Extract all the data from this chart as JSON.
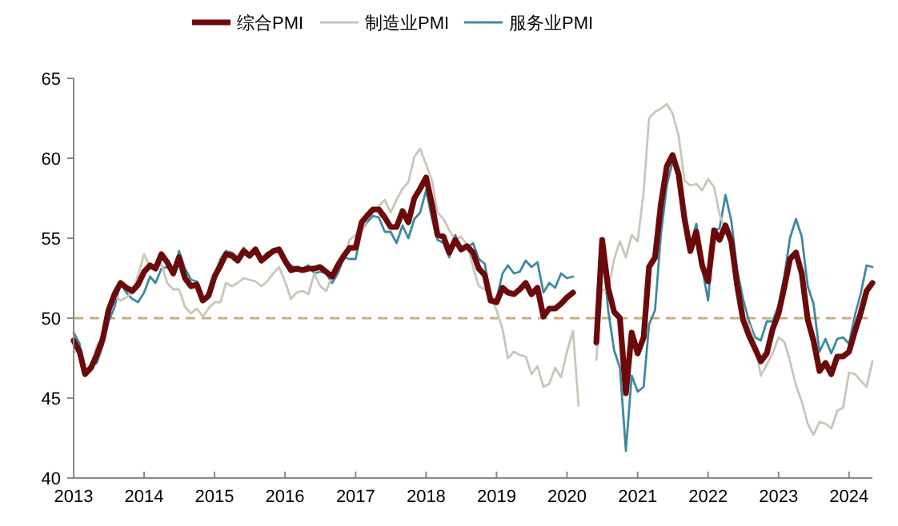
{
  "chart_data": {
    "type": "line",
    "x": [
      "2013-01",
      "2013-02",
      "2013-03",
      "2013-04",
      "2013-05",
      "2013-06",
      "2013-07",
      "2013-08",
      "2013-09",
      "2013-10",
      "2013-11",
      "2013-12",
      "2014-01",
      "2014-02",
      "2014-03",
      "2014-04",
      "2014-05",
      "2014-06",
      "2014-07",
      "2014-08",
      "2014-09",
      "2014-10",
      "2014-11",
      "2014-12",
      "2015-01",
      "2015-02",
      "2015-03",
      "2015-04",
      "2015-05",
      "2015-06",
      "2015-07",
      "2015-08",
      "2015-09",
      "2015-10",
      "2015-11",
      "2015-12",
      "2016-01",
      "2016-02",
      "2016-03",
      "2016-04",
      "2016-05",
      "2016-06",
      "2016-07",
      "2016-08",
      "2016-09",
      "2016-10",
      "2016-11",
      "2016-12",
      "2017-01",
      "2017-02",
      "2017-03",
      "2017-04",
      "2017-05",
      "2017-06",
      "2017-07",
      "2017-08",
      "2017-09",
      "2017-10",
      "2017-11",
      "2017-12",
      "2018-01",
      "2018-02",
      "2018-03",
      "2018-04",
      "2018-05",
      "2018-06",
      "2018-07",
      "2018-08",
      "2018-09",
      "2018-10",
      "2018-11",
      "2018-12",
      "2019-01",
      "2019-02",
      "2019-03",
      "2019-04",
      "2019-05",
      "2019-06",
      "2019-07",
      "2019-08",
      "2019-09",
      "2019-10",
      "2019-11",
      "2019-12",
      "2020-01",
      "2020-02",
      "2020-03",
      "2020-04",
      "2020-05",
      "2020-06",
      "2020-07",
      "2020-08",
      "2020-09",
      "2020-10",
      "2020-11",
      "2020-12",
      "2021-01",
      "2021-02",
      "2021-03",
      "2021-04",
      "2021-05",
      "2021-06",
      "2021-07",
      "2021-08",
      "2021-09",
      "2021-10",
      "2021-11",
      "2021-12",
      "2022-01",
      "2022-02",
      "2022-03",
      "2022-04",
      "2022-05",
      "2022-06",
      "2022-07",
      "2022-08",
      "2022-09",
      "2022-10",
      "2022-11",
      "2022-12",
      "2023-01",
      "2023-02",
      "2023-03",
      "2023-04",
      "2023-05",
      "2023-06",
      "2023-07",
      "2023-08",
      "2023-09",
      "2023-10",
      "2023-11",
      "2023-12",
      "2024-01",
      "2024-02",
      "2024-03",
      "2024-04",
      "2024-05"
    ],
    "series": [
      {
        "name": "综合PMI",
        "color": "#6b0a0a",
        "values": [
          48.6,
          47.9,
          46.5,
          46.9,
          47.7,
          48.7,
          50.5,
          51.5,
          52.2,
          51.9,
          51.7,
          52.1,
          52.9,
          53.3,
          53.1,
          54.0,
          53.5,
          52.8,
          53.8,
          52.5,
          52.0,
          52.1,
          51.1,
          51.4,
          52.6,
          53.3,
          54.0,
          53.9,
          53.6,
          54.2,
          53.9,
          54.3,
          53.6,
          53.9,
          54.2,
          54.3,
          53.6,
          53.0,
          53.1,
          53.0,
          53.1,
          53.1,
          53.2,
          52.9,
          52.6,
          53.3,
          53.9,
          54.4,
          54.4,
          56.0,
          56.4,
          56.8,
          56.8,
          56.3,
          55.7,
          55.7,
          56.7,
          56.0,
          57.5,
          58.1,
          58.8,
          57.1,
          55.2,
          55.1,
          54.1,
          54.9,
          54.3,
          54.5,
          54.1,
          53.1,
          52.7,
          51.1,
          51.0,
          51.9,
          51.6,
          51.5,
          51.8,
          52.2,
          51.5,
          51.9,
          50.1,
          50.6,
          50.6,
          50.9,
          51.3,
          51.6,
          null,
          null,
          null,
          48.5,
          54.9,
          51.9,
          50.4,
          50.0,
          45.3,
          49.1,
          47.8,
          48.8,
          53.2,
          53.8,
          57.1,
          59.5,
          60.2,
          59.0,
          56.2,
          54.2,
          55.4,
          53.3,
          52.3,
          55.5,
          54.9,
          55.8,
          54.8,
          52.0,
          49.9,
          48.9,
          48.1,
          47.3,
          47.8,
          49.3,
          50.3,
          52.0,
          53.7,
          54.1,
          52.8,
          49.9,
          48.6,
          46.7,
          47.2,
          46.5,
          47.6,
          47.6,
          47.9,
          49.2,
          50.3,
          51.7,
          52.2
        ]
      },
      {
        "name": "制造业PMI",
        "color": "#c9c6ba",
        "values": [
          47.9,
          47.9,
          46.8,
          46.7,
          48.3,
          48.8,
          50.3,
          51.4,
          51.1,
          51.3,
          51.6,
          52.7,
          54.0,
          53.2,
          53.0,
          53.4,
          52.2,
          51.8,
          51.8,
          50.7,
          50.3,
          50.6,
          50.1,
          50.6,
          51.0,
          51.0,
          52.2,
          52.0,
          52.2,
          52.5,
          52.4,
          52.3,
          52.0,
          52.3,
          52.8,
          53.2,
          52.3,
          51.2,
          51.6,
          51.7,
          51.5,
          52.8,
          52.0,
          51.7,
          52.6,
          53.5,
          53.7,
          54.9,
          55.2,
          55.4,
          56.2,
          56.7,
          57.0,
          57.4,
          56.6,
          57.4,
          58.1,
          58.5,
          60.1,
          60.6,
          59.6,
          58.6,
          56.6,
          56.2,
          55.5,
          54.9,
          55.1,
          54.6,
          53.2,
          52.0,
          51.8,
          51.4,
          50.5,
          49.3,
          47.5,
          47.9,
          47.7,
          47.6,
          46.5,
          47.0,
          45.7,
          45.9,
          46.9,
          46.3,
          47.9,
          49.2,
          44.5,
          null,
          null,
          47.4,
          51.8,
          51.7,
          53.7,
          54.8,
          53.8,
          55.2,
          54.8,
          57.9,
          62.5,
          62.9,
          63.1,
          63.4,
          62.8,
          61.4,
          58.6,
          58.3,
          58.4,
          58.0,
          58.7,
          58.2,
          56.5,
          55.5,
          54.6,
          52.1,
          49.8,
          49.6,
          48.4,
          46.4,
          47.1,
          47.8,
          48.8,
          48.5,
          47.3,
          45.8,
          44.8,
          43.4,
          42.7,
          43.5,
          43.4,
          43.1,
          44.2,
          44.4,
          46.6,
          46.5,
          46.1,
          45.7,
          47.3
        ]
      },
      {
        "name": "服务业PMI",
        "color": "#3d8aa0",
        "values": [
          49.1,
          48.4,
          46.4,
          47.0,
          47.2,
          48.3,
          49.8,
          50.7,
          52.2,
          51.6,
          51.2,
          51.0,
          51.6,
          52.6,
          52.2,
          53.1,
          53.2,
          52.8,
          54.2,
          53.1,
          52.4,
          52.3,
          51.1,
          51.6,
          52.7,
          53.7,
          54.2,
          54.1,
          53.8,
          54.4,
          54.0,
          54.4,
          53.7,
          54.1,
          54.2,
          54.2,
          53.6,
          53.3,
          53.1,
          53.1,
          53.3,
          52.8,
          52.9,
          52.8,
          52.2,
          52.8,
          53.8,
          53.7,
          53.7,
          55.5,
          56.0,
          56.4,
          56.3,
          55.4,
          55.4,
          54.7,
          55.8,
          55.0,
          56.2,
          56.6,
          58.0,
          56.2,
          54.9,
          54.7,
          53.8,
          55.2,
          54.2,
          54.4,
          54.7,
          53.7,
          53.4,
          51.2,
          51.2,
          52.8,
          53.3,
          52.8,
          52.9,
          53.6,
          53.2,
          53.5,
          51.6,
          52.2,
          51.9,
          52.8,
          52.5,
          52.6,
          null,
          null,
          null,
          48.3,
          54.7,
          50.5,
          48.0,
          46.9,
          41.7,
          46.4,
          45.4,
          45.7,
          49.6,
          50.5,
          55.2,
          58.3,
          59.8,
          59.0,
          56.4,
          54.6,
          55.9,
          53.1,
          51.1,
          55.5,
          55.6,
          57.7,
          56.1,
          53.0,
          51.2,
          49.8,
          48.8,
          48.6,
          49.8,
          49.8,
          50.8,
          52.7,
          55.0,
          56.2,
          55.1,
          52.0,
          50.9,
          47.9,
          48.7,
          47.8,
          48.7,
          48.8,
          48.4,
          50.2,
          51.5,
          53.3,
          53.2
        ]
      }
    ],
    "xlim": [
      "2013-01",
      "2024-05"
    ],
    "xticks": [
      {
        "value": "2013-01",
        "label": "2013"
      },
      {
        "value": "2014-01",
        "label": "2014"
      },
      {
        "value": "2015-01",
        "label": "2015"
      },
      {
        "value": "2016-01",
        "label": "2016"
      },
      {
        "value": "2017-01",
        "label": "2017"
      },
      {
        "value": "2018-01",
        "label": "2018"
      },
      {
        "value": "2019-01",
        "label": "2019"
      },
      {
        "value": "2020-01",
        "label": "2020"
      },
      {
        "value": "2021-01",
        "label": "2021"
      },
      {
        "value": "2022-01",
        "label": "2022"
      },
      {
        "value": "2023-01",
        "label": "2023"
      },
      {
        "value": "2024-01",
        "label": "2024"
      }
    ],
    "ylim": [
      40,
      65
    ],
    "yticks": [
      40,
      45,
      50,
      55,
      60,
      65
    ],
    "ref_lines": [
      {
        "axis": "y",
        "value": 50,
        "color": "#c8ad7f",
        "line_style": "dashed"
      }
    ],
    "legend": "top",
    "grid": false
  }
}
